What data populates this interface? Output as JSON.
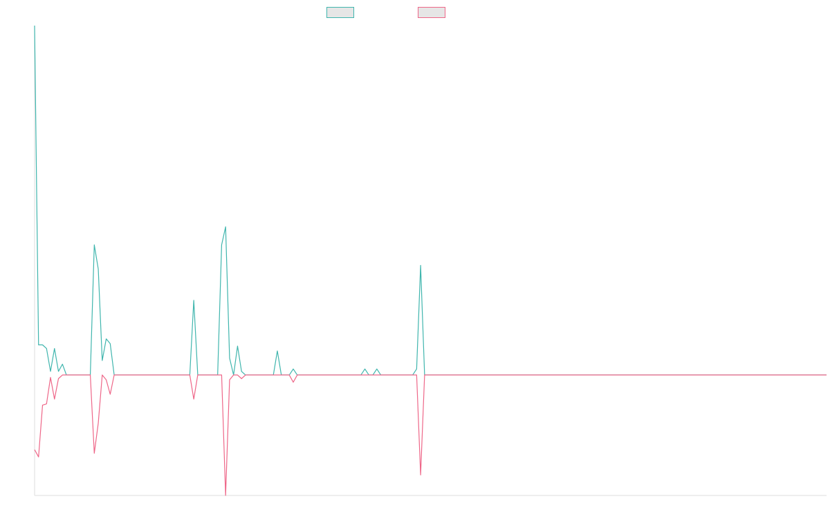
{
  "chart_data": {
    "type": "line",
    "title": "",
    "xlabel": "",
    "ylabel": "",
    "legend_position": "top-center",
    "x_count": 200,
    "ylim": [
      -1,
      2.9
    ],
    "series": [
      {
        "color": "#3fb5ad",
        "spikes": [
          {
            "i": 0,
            "v": 2.9
          },
          {
            "i": 1,
            "v": 0.25
          },
          {
            "i": 2,
            "v": 0.25
          },
          {
            "i": 3,
            "v": 0.22
          },
          {
            "i": 4,
            "v": 0.03
          },
          {
            "i": 5,
            "v": 0.22
          },
          {
            "i": 6,
            "v": 0.03
          },
          {
            "i": 7,
            "v": 0.09
          },
          {
            "i": 15,
            "v": 1.08
          },
          {
            "i": 16,
            "v": 0.88
          },
          {
            "i": 17,
            "v": 0.12
          },
          {
            "i": 18,
            "v": 0.3
          },
          {
            "i": 19,
            "v": 0.26
          },
          {
            "i": 40,
            "v": 0.62
          },
          {
            "i": 47,
            "v": 1.08
          },
          {
            "i": 48,
            "v": 1.23
          },
          {
            "i": 49,
            "v": 0.14
          },
          {
            "i": 51,
            "v": 0.24
          },
          {
            "i": 52,
            "v": 0.03
          },
          {
            "i": 61,
            "v": 0.2
          },
          {
            "i": 65,
            "v": 0.05
          },
          {
            "i": 83,
            "v": 0.05
          },
          {
            "i": 86,
            "v": 0.05
          },
          {
            "i": 96,
            "v": 0.05
          },
          {
            "i": 97,
            "v": 0.91
          }
        ]
      },
      {
        "color": "#ee6688",
        "spikes": [
          {
            "i": 0,
            "v": -0.62
          },
          {
            "i": 1,
            "v": -0.68
          },
          {
            "i": 2,
            "v": -0.25
          },
          {
            "i": 3,
            "v": -0.24
          },
          {
            "i": 4,
            "v": -0.02
          },
          {
            "i": 5,
            "v": -0.2
          },
          {
            "i": 6,
            "v": -0.03
          },
          {
            "i": 15,
            "v": -0.65
          },
          {
            "i": 16,
            "v": -0.4
          },
          {
            "i": 18,
            "v": -0.04
          },
          {
            "i": 19,
            "v": -0.16
          },
          {
            "i": 40,
            "v": -0.2
          },
          {
            "i": 48,
            "v": -1.0
          },
          {
            "i": 49,
            "v": -0.04
          },
          {
            "i": 52,
            "v": -0.03
          },
          {
            "i": 65,
            "v": -0.06
          },
          {
            "i": 97,
            "v": -0.83
          }
        ]
      }
    ]
  }
}
